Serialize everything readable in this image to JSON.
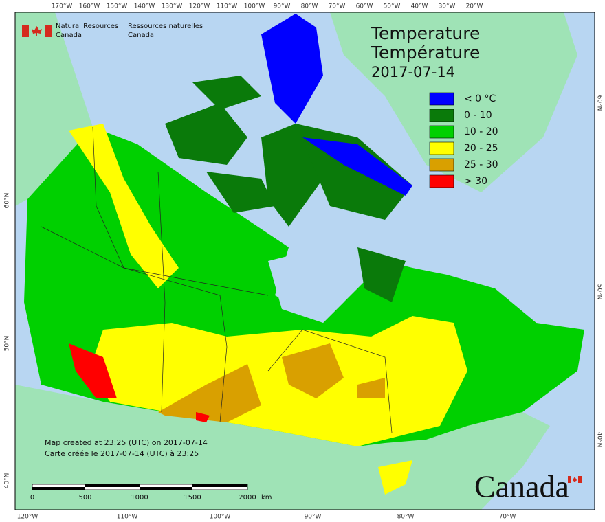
{
  "header": {
    "agency_en": [
      "Natural Resources",
      "Canada"
    ],
    "agency_fr": [
      "Ressources naturelles",
      "Canada"
    ]
  },
  "title": {
    "en": "Temperature",
    "fr": "Température",
    "date": "2017-07-14"
  },
  "legend": [
    {
      "label": "< 0 °C",
      "color": "#0000ff"
    },
    {
      "label": "0 - 10",
      "color": "#0a7a0a"
    },
    {
      "label": "10 - 20",
      "color": "#00d000"
    },
    {
      "label": "20 - 25",
      "color": "#ffff00"
    },
    {
      "label": "25 - 30",
      "color": "#d9a000"
    },
    {
      "label": "> 30",
      "color": "#ff0000"
    }
  ],
  "credits": [
    "Map created at 23:25 (UTC) on 2017-07-14",
    "Carte créée le 2017-07-14 (UTC) à 23:25"
  ],
  "scale_bar": {
    "labels": [
      "0",
      "500",
      "1000",
      "1500",
      "2000"
    ],
    "unit": "km"
  },
  "graticule": {
    "top": [
      "170°W",
      "160°W",
      "150°W",
      "140°W",
      "130°W",
      "120°W",
      "110°W",
      "100°W",
      "90°W",
      "80°W",
      "70°W",
      "60°W",
      "50°W",
      "40°W",
      "30°W",
      "20°W"
    ],
    "bottom": [
      "120°W",
      "110°W",
      "100°W",
      "90°W",
      "80°W",
      "70°W"
    ],
    "left": [
      "60°N",
      "50°N",
      "40°N"
    ],
    "right": [
      "60°N",
      "50°N",
      "40°N"
    ]
  },
  "wordmark": "Canada"
}
